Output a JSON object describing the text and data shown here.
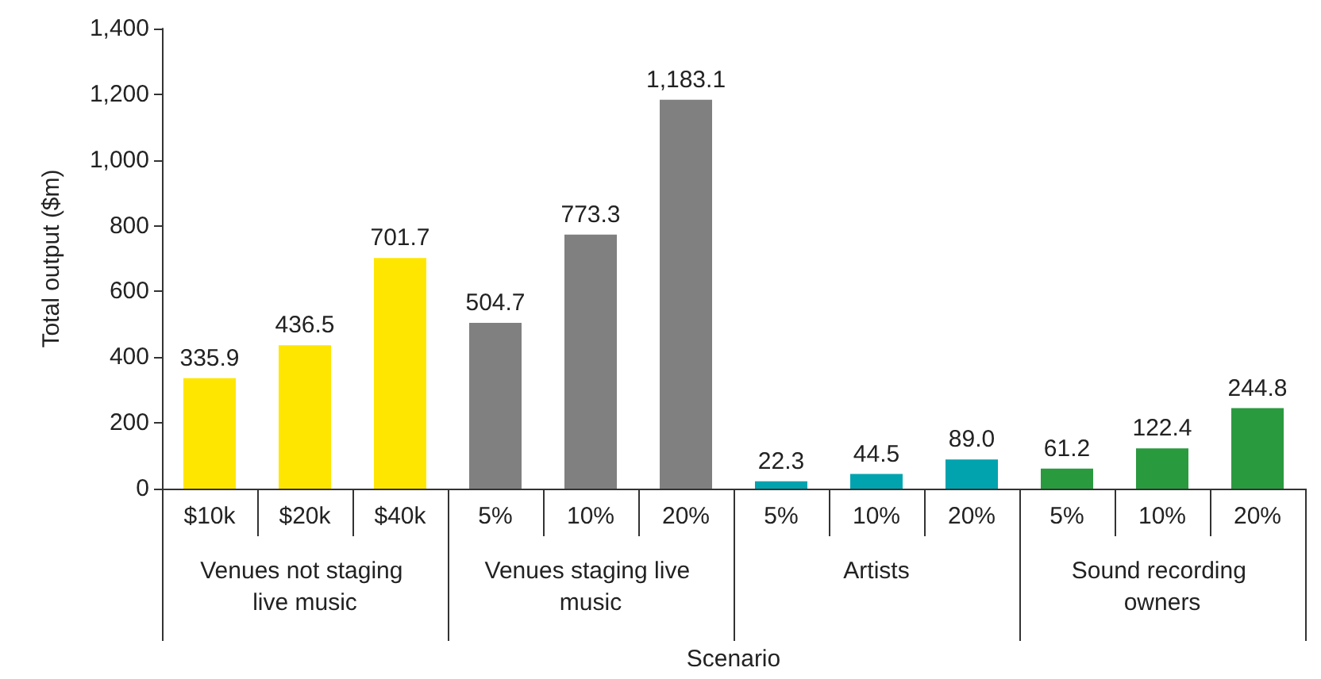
{
  "chart_data": {
    "type": "bar",
    "xlabel": "Scenario",
    "ylabel": "Total output ($m)",
    "categories": [
      "$10k",
      "$20k",
      "$40k",
      "5%",
      "10%",
      "20%",
      "5%",
      "10%",
      "20%",
      "5%",
      "10%",
      "20%"
    ],
    "values": [
      335.9,
      436.5,
      701.7,
      504.7,
      773.3,
      1183.1,
      22.3,
      44.5,
      89.0,
      61.2,
      122.4,
      244.8
    ],
    "colors": [
      "#ffe600",
      "#ffe600",
      "#ffe600",
      "#808080",
      "#808080",
      "#808080",
      "#00a3ae",
      "#00a3ae",
      "#00a3ae",
      "#2a9a3f",
      "#2a9a3f",
      "#2a9a3f"
    ],
    "value_labels": [
      "335.9",
      "436.5",
      "701.7",
      "504.7",
      "773.3",
      "1,183.1",
      "22.3",
      "44.5",
      "89.0",
      "61.2",
      "122.4",
      "244.8"
    ],
    "annotations": [
      "Venues not staging live music",
      "Venues staging live music",
      "Artists",
      "Sound recording owners"
    ],
    "ylim": [
      0,
      1400
    ],
    "yticks": [
      0,
      200,
      400,
      600,
      800,
      {
        "value": 1000,
        "label": "1,000"
      },
      {
        "value": 1200,
        "label": "1,200"
      },
      {
        "value": 1400,
        "label": "1,400"
      }
    ],
    "grid": false
  }
}
